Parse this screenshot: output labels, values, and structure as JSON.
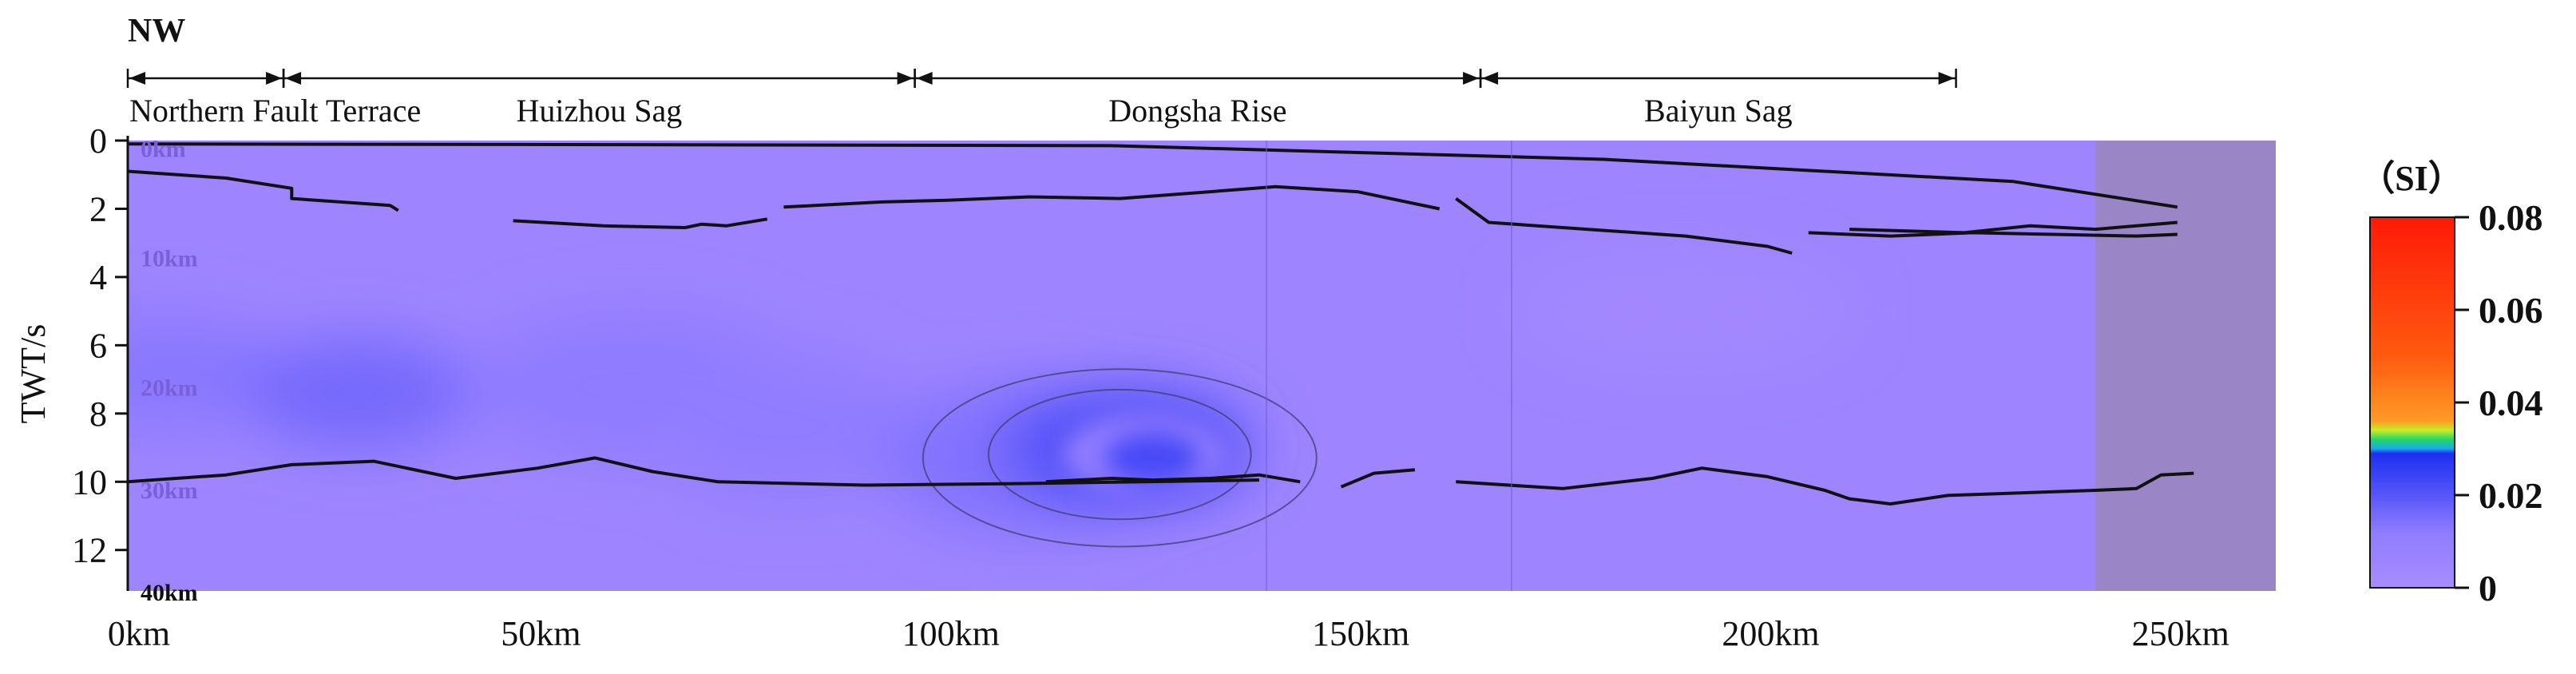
{
  "chart_data": {
    "type": "heatmap",
    "corner_label": "NW",
    "ylabel": "TWT/s",
    "x_ticks": [
      {
        "value": 0,
        "label": "0km"
      },
      {
        "value": 50,
        "label": "50km"
      },
      {
        "value": 100,
        "label": "100km"
      },
      {
        "value": 150,
        "label": "150km"
      },
      {
        "value": 200,
        "label": "200km"
      },
      {
        "value": 250,
        "label": "250km"
      }
    ],
    "y_ticks": [
      {
        "value": 0,
        "label": "0"
      },
      {
        "value": 2,
        "label": "2"
      },
      {
        "value": 4,
        "label": "4"
      },
      {
        "value": 6,
        "label": "6"
      },
      {
        "value": 8,
        "label": "8"
      },
      {
        "value": 10,
        "label": "10"
      },
      {
        "value": 12,
        "label": "12"
      }
    ],
    "xlim": [
      0,
      262
    ],
    "ylim": [
      0,
      13.2
    ],
    "depth_labels": [
      {
        "twt": 0.2,
        "label": "0km"
      },
      {
        "twt": 3.4,
        "label": "10km"
      },
      {
        "twt": 7.2,
        "label": "20km"
      },
      {
        "twt": 10.2,
        "label": "30km"
      },
      {
        "twt": 13.2,
        "label": "40km"
      }
    ],
    "zones": [
      {
        "label": "Northern Fault Terrace",
        "start": 0,
        "end": 19
      },
      {
        "label": "Huizhou Sag",
        "start": 19,
        "end": 96
      },
      {
        "label": "Dongsha Rise",
        "start": 96,
        "end": 165
      },
      {
        "label": "Baiyun Sag",
        "start": 165,
        "end": 223
      }
    ],
    "colorbar": {
      "title": "（SI）",
      "min": 0,
      "max": 0.08,
      "ticks": [
        {
          "value": 0,
          "label": "0"
        },
        {
          "value": 0.02,
          "label": "0.02"
        },
        {
          "value": 0.04,
          "label": "0.04"
        },
        {
          "value": 0.06,
          "label": "0.06"
        },
        {
          "value": 0.08,
          "label": "0.08"
        }
      ],
      "stops": [
        {
          "value": 0,
          "color": "#a88cff"
        },
        {
          "value": 0.012,
          "color": "#8f7cff"
        },
        {
          "value": 0.022,
          "color": "#4a4cf8"
        },
        {
          "value": 0.029,
          "color": "#1e2ff2"
        },
        {
          "value": 0.03,
          "color": "#1aa8ee"
        },
        {
          "value": 0.032,
          "color": "#22d66a"
        },
        {
          "value": 0.034,
          "color": "#c8ee22"
        },
        {
          "value": 0.036,
          "color": "#ff9a26"
        },
        {
          "value": 0.05,
          "color": "#ff5a10"
        },
        {
          "value": 0.08,
          "color": "#ff1a08"
        }
      ]
    },
    "background_value": 0.005,
    "shaded_region": {
      "from": 240,
      "to": 262,
      "color": "#9a86c6"
    },
    "anomalies": [
      {
        "x": 5,
        "y": 6.8,
        "sx": 14,
        "sy": 1.6,
        "value": 0.013
      },
      {
        "x": 28,
        "y": 7.4,
        "sx": 14,
        "sy": 1.6,
        "value": 0.016
      },
      {
        "x": 62,
        "y": 7.2,
        "sx": 20,
        "sy": 2.2,
        "value": 0.012
      },
      {
        "x": 80,
        "y": 8.4,
        "sx": 16,
        "sy": 2.2,
        "value": 0.011
      },
      {
        "x": 110,
        "y": 9.3,
        "sx": 18,
        "sy": 2.2,
        "value": 0.014
      },
      {
        "x": 190,
        "y": 5.0,
        "sx": 20,
        "sy": 1.5,
        "value": 0.003
      },
      {
        "x": 122,
        "y": 9.0,
        "sx": 15,
        "sy": 1.7,
        "value": 0.022
      },
      {
        "x": 124,
        "y": 9.2,
        "sx": 10,
        "sy": 1.2,
        "value": 0.012
      },
      {
        "x": 125,
        "y": 9.3,
        "sx": 6,
        "sy": 0.8,
        "value": 0.022
      }
    ],
    "horizons": [
      [
        [
          0,
          0.1
        ],
        [
          60,
          0.12
        ],
        [
          120,
          0.15
        ],
        [
          180,
          0.55
        ],
        [
          230,
          1.2
        ],
        [
          250,
          1.95
        ]
      ],
      [
        [
          0,
          0.9
        ],
        [
          12,
          1.1
        ],
        [
          20,
          1.4
        ],
        [
          20,
          1.7
        ],
        [
          32,
          1.9
        ],
        [
          33,
          2.05
        ]
      ],
      [
        [
          47,
          2.35
        ],
        [
          58,
          2.5
        ],
        [
          68,
          2.55
        ],
        [
          70,
          2.45
        ],
        [
          73,
          2.5
        ],
        [
          78,
          2.3
        ]
      ],
      [
        [
          80,
          1.95
        ],
        [
          92,
          1.8
        ],
        [
          100,
          1.75
        ],
        [
          110,
          1.65
        ],
        [
          121,
          1.7
        ],
        [
          132,
          1.5
        ],
        [
          140,
          1.35
        ],
        [
          150,
          1.5
        ],
        [
          160,
          2.0
        ]
      ],
      [
        [
          162,
          1.7
        ],
        [
          166,
          2.4
        ],
        [
          178,
          2.6
        ],
        [
          190,
          2.8
        ],
        [
          200,
          3.1
        ],
        [
          203,
          3.3
        ]
      ],
      [
        [
          205,
          2.7
        ],
        [
          215,
          2.8
        ],
        [
          225,
          2.7
        ],
        [
          235,
          2.75
        ],
        [
          245,
          2.8
        ],
        [
          250,
          2.75
        ]
      ],
      [
        [
          210,
          2.6
        ],
        [
          224,
          2.7
        ],
        [
          232,
          2.5
        ],
        [
          240,
          2.6
        ],
        [
          250,
          2.4
        ]
      ],
      [
        [
          0,
          10.0
        ],
        [
          12,
          9.8
        ],
        [
          20,
          9.5
        ],
        [
          30,
          9.4
        ],
        [
          40,
          9.9
        ],
        [
          50,
          9.6
        ],
        [
          57,
          9.3
        ],
        [
          64,
          9.7
        ],
        [
          72,
          10.0
        ],
        [
          90,
          10.1
        ],
        [
          110,
          10.05
        ],
        [
          138,
          9.95
        ]
      ],
      [
        [
          112,
          10.0
        ],
        [
          120,
          9.9
        ],
        [
          125,
          9.95
        ]
      ],
      [
        [
          125,
          9.95
        ],
        [
          132,
          9.9
        ],
        [
          138,
          9.8
        ],
        [
          143,
          10.0
        ]
      ],
      [
        [
          148,
          10.15
        ],
        [
          152,
          9.75
        ],
        [
          157,
          9.65
        ]
      ],
      [
        [
          162,
          10.0
        ],
        [
          175,
          10.2
        ],
        [
          186,
          9.9
        ],
        [
          192,
          9.6
        ],
        [
          200,
          9.85
        ],
        [
          207,
          10.25
        ],
        [
          210,
          10.5
        ],
        [
          215,
          10.65
        ],
        [
          222,
          10.4
        ],
        [
          240,
          10.25
        ],
        [
          245,
          10.2
        ],
        [
          248,
          9.8
        ],
        [
          252,
          9.75
        ]
      ]
    ],
    "contours": [
      {
        "cx": 121,
        "cy": 9.3,
        "rx": 24,
        "ry": 2.6
      },
      {
        "cx": 121,
        "cy": 9.2,
        "rx": 16,
        "ry": 1.9
      }
    ]
  }
}
